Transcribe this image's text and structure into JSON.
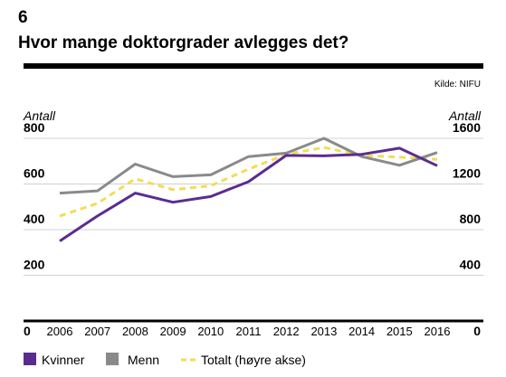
{
  "figure": {
    "number": "6",
    "title": "Hvor mange doktorgrader avlegges det?",
    "source": "Kilde: NIFU"
  },
  "chart_data": {
    "type": "line",
    "x": [
      2006,
      2007,
      2008,
      2009,
      2010,
      2011,
      2012,
      2013,
      2014,
      2015,
      2016
    ],
    "x_tick_labels": [
      "2006",
      "2007",
      "2008",
      "2009",
      "2010",
      "2011",
      "2012",
      "2013",
      "2014",
      "2015",
      "2016"
    ],
    "ylabel_left": "Antall",
    "ylabel_right": "Antall",
    "ylim_left": [
      0,
      800
    ],
    "ylim_right": [
      0,
      1600
    ],
    "y_ticks_left": [
      0,
      200,
      400,
      600,
      800
    ],
    "y_ticks_right": [
      0,
      400,
      800,
      1200,
      1600
    ],
    "grid": true,
    "legend": "bottom",
    "series": [
      {
        "name": "Kvinner",
        "axis": "left",
        "color": "#5b2c8f",
        "style": "solid",
        "values": [
          350,
          460,
          560,
          520,
          545,
          610,
          725,
          723,
          730,
          757,
          680
        ]
      },
      {
        "name": "Menn",
        "axis": "left",
        "color": "#8a8a8a",
        "style": "solid",
        "values": [
          560,
          570,
          687,
          632,
          640,
          720,
          735,
          800,
          720,
          682,
          738
        ]
      },
      {
        "name": "Totalt (høyre akse)",
        "axis": "right",
        "color": "#f3dc57",
        "style": "dashed",
        "values": [
          920,
          1030,
          1245,
          1150,
          1185,
          1330,
          1460,
          1520,
          1450,
          1435,
          1415
        ]
      }
    ]
  }
}
